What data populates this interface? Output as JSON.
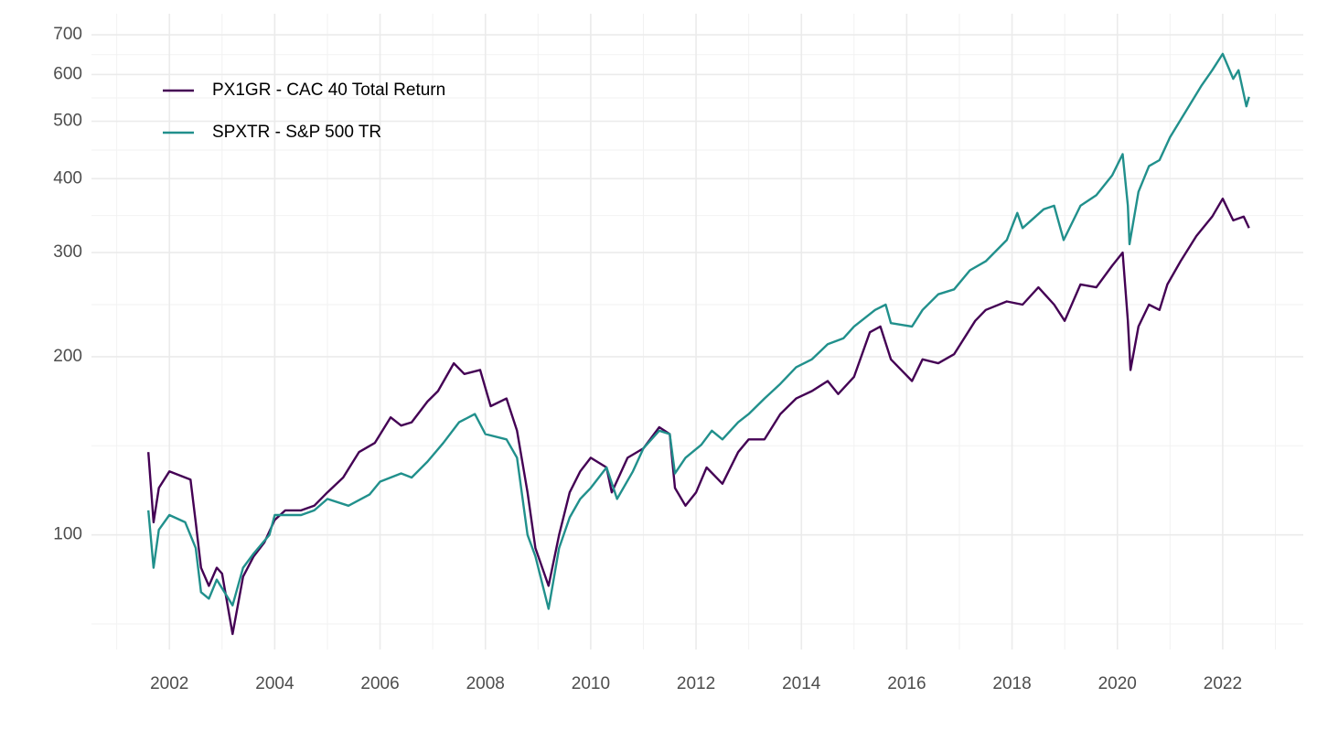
{
  "chart_data": {
    "type": "line",
    "log_y": true,
    "grid": true,
    "legend_position": "top-left",
    "xlim": [
      2000.52,
      2023.53
    ],
    "xticks": [
      2002,
      2004,
      2006,
      2008,
      2010,
      2012,
      2014,
      2016,
      2018,
      2020,
      2022
    ],
    "ylim": [
      64,
      760
    ],
    "yticks": [
      100,
      200,
      300,
      400,
      500,
      600,
      700
    ],
    "series": [
      {
        "name": "PX1GR - CAC 40 Total Return",
        "color": "#440154",
        "x": [
          2001.6,
          2001.7,
          2001.8,
          2002.0,
          2002.2,
          2002.4,
          2002.5,
          2002.6,
          2002.75,
          2002.9,
          2003.0,
          2003.2,
          2003.4,
          2003.6,
          2003.8,
          2004.0,
          2004.2,
          2004.5,
          2004.75,
          2005.0,
          2005.3,
          2005.6,
          2005.9,
          2006.2,
          2006.4,
          2006.6,
          2006.9,
          2007.1,
          2007.4,
          2007.6,
          2007.9,
          2008.1,
          2008.4,
          2008.6,
          2008.8,
          2008.95,
          2009.2,
          2009.4,
          2009.6,
          2009.8,
          2010.0,
          2010.3,
          2010.4,
          2010.7,
          2011.0,
          2011.3,
          2011.5,
          2011.6,
          2011.8,
          2012.0,
          2012.2,
          2012.5,
          2012.8,
          2013.0,
          2013.3,
          2013.6,
          2013.9,
          2014.2,
          2014.5,
          2014.7,
          2015.0,
          2015.3,
          2015.5,
          2015.7,
          2016.1,
          2016.3,
          2016.6,
          2016.9,
          2017.3,
          2017.5,
          2017.9,
          2018.2,
          2018.5,
          2018.8,
          2019.0,
          2019.3,
          2019.6,
          2019.9,
          2020.1,
          2020.2,
          2020.25,
          2020.4,
          2020.6,
          2020.8,
          2020.95,
          2021.2,
          2021.5,
          2021.8,
          2022.0,
          2022.2,
          2022.4,
          2022.5
        ],
        "values": [
          138,
          105,
          120,
          128,
          126,
          124,
          105,
          88,
          82,
          88,
          86,
          68,
          85,
          92,
          97,
          106,
          110,
          110,
          112,
          118,
          125,
          138,
          143,
          158,
          153,
          155,
          168,
          175,
          195,
          187,
          190,
          165,
          170,
          150,
          118,
          95,
          82,
          100,
          118,
          128,
          135,
          130,
          118,
          135,
          140,
          152,
          148,
          120,
          112,
          118,
          130,
          122,
          138,
          145,
          145,
          160,
          170,
          175,
          182,
          173,
          185,
          220,
          225,
          198,
          182,
          198,
          195,
          202,
          230,
          240,
          248,
          245,
          262,
          245,
          230,
          265,
          262,
          285,
          300,
          230,
          190,
          225,
          245,
          240,
          265,
          290,
          320,
          345,
          370,
          340,
          345,
          330
        ]
      },
      {
        "name": "SPXTR - S&P 500 TR",
        "color": "#21908c",
        "x": [
          2001.6,
          2001.7,
          2001.8,
          2002.0,
          2002.3,
          2002.5,
          2002.6,
          2002.75,
          2002.9,
          2003.2,
          2003.4,
          2003.6,
          2003.9,
          2004.0,
          2004.5,
          2004.75,
          2005.0,
          2005.4,
          2005.8,
          2006.0,
          2006.4,
          2006.6,
          2006.9,
          2007.2,
          2007.5,
          2007.8,
          2008.0,
          2008.4,
          2008.6,
          2008.8,
          2008.95,
          2009.2,
          2009.4,
          2009.6,
          2009.8,
          2010.0,
          2010.3,
          2010.5,
          2010.8,
          2011.0,
          2011.3,
          2011.5,
          2011.6,
          2011.8,
          2012.1,
          2012.3,
          2012.5,
          2012.8,
          2013.0,
          2013.3,
          2013.6,
          2013.9,
          2014.2,
          2014.5,
          2014.8,
          2015.0,
          2015.4,
          2015.6,
          2015.7,
          2016.1,
          2016.3,
          2016.6,
          2016.9,
          2017.2,
          2017.5,
          2017.9,
          2018.1,
          2018.2,
          2018.6,
          2018.8,
          2018.98,
          2019.3,
          2019.6,
          2019.9,
          2020.1,
          2020.2,
          2020.23,
          2020.4,
          2020.6,
          2020.8,
          2021.0,
          2021.3,
          2021.6,
          2021.8,
          2022.0,
          2022.2,
          2022.3,
          2022.45,
          2022.5
        ],
        "values": [
          110,
          88,
          102,
          108,
          105,
          95,
          80,
          78,
          84,
          76,
          88,
          93,
          100,
          108,
          108,
          110,
          115,
          112,
          117,
          123,
          127,
          125,
          133,
          143,
          155,
          160,
          148,
          145,
          135,
          100,
          92,
          75,
          95,
          107,
          115,
          120,
          130,
          115,
          128,
          140,
          150,
          148,
          127,
          135,
          142,
          150,
          145,
          155,
          160,
          170,
          180,
          192,
          198,
          210,
          215,
          225,
          240,
          245,
          228,
          225,
          240,
          255,
          260,
          280,
          290,
          315,
          350,
          330,
          355,
          360,
          315,
          360,
          375,
          405,
          440,
          360,
          310,
          380,
          420,
          430,
          470,
          520,
          575,
          610,
          650,
          590,
          610,
          530,
          550
        ]
      }
    ]
  }
}
